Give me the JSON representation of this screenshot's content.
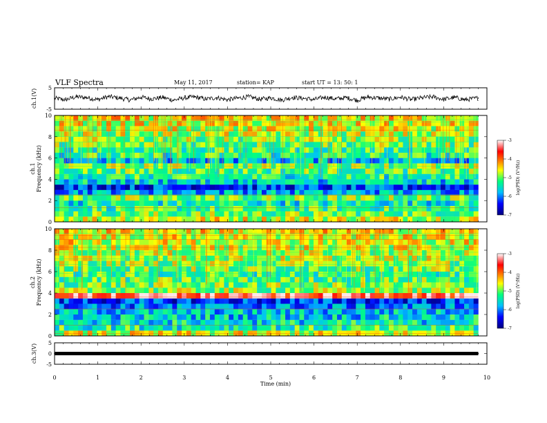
{
  "header": {
    "title": "VLF Spectra",
    "date": "May 11, 2017",
    "station": "station= KAP",
    "start": "start  UT  =   13: 50: 1"
  },
  "chart_data": [
    {
      "type": "line",
      "panel": "ch1-waveform",
      "ylabel": "ch.1(V)",
      "ylim": [
        -5,
        5
      ],
      "yticks": [
        "5",
        "-5"
      ],
      "xlim": [
        0,
        10
      ],
      "x": [
        0,
        0.25,
        0.5,
        0.75,
        1,
        1.25,
        1.5,
        1.75,
        2,
        2.25,
        2.5,
        2.75,
        3,
        3.25,
        3.5,
        3.75,
        4,
        4.25,
        4.5,
        4.75,
        5,
        5.25,
        5.5,
        5.75,
        6,
        6.25,
        6.5,
        6.75,
        7,
        7.25,
        7.5,
        7.75,
        8,
        8.25,
        8.5,
        8.75,
        9,
        9.25,
        9.5,
        9.8
      ],
      "y": [
        0.1,
        -0.6,
        0.8,
        0.4,
        -0.5,
        0.9,
        0.2,
        -0.7,
        0.6,
        -0.2,
        0.5,
        -0.8,
        0.3,
        0.7,
        -0.3,
        0.4,
        -0.6,
        0.2,
        0.8,
        -0.4,
        0.3,
        -0.7,
        0.5,
        0.1,
        -0.5,
        0.6,
        -0.2,
        0.4,
        -0.8,
        0.7,
        0.2,
        -0.3,
        0.6,
        -0.5,
        0.3,
        0.8,
        -0.4,
        0.5,
        -0.6,
        0.2
      ]
    },
    {
      "type": "heatmap",
      "panel": "ch1-spectrogram",
      "ylabel": "ch.1\nFrequency (kHz)",
      "ylim": [
        0,
        10
      ],
      "yticks": [
        "0",
        "2",
        "4",
        "6",
        "8",
        "10"
      ],
      "xlim": [
        0,
        10
      ],
      "data_end_min": 9.8,
      "rows_freq_khz_start": [
        0,
        0.5,
        1,
        1.5,
        2,
        2.5,
        3,
        3.5,
        4,
        4.5,
        5,
        5.5,
        6,
        6.5,
        7,
        7.5,
        8,
        8.5,
        9,
        9.5
      ],
      "log_psd_by_row": [
        -4.6,
        -5.0,
        -5.2,
        -5.4,
        -5.0,
        -5.8,
        -6.3,
        -5.6,
        -5.3,
        -5.1,
        -4.9,
        -5.7,
        -5.3,
        -5.2,
        -5.0,
        -4.9,
        -4.8,
        -4.7,
        -4.6,
        -4.5
      ],
      "colorbar": {
        "label": "log(PSD) (V²/Hz)",
        "min": -7,
        "max": -3,
        "ticks": [
          "-3",
          "-4",
          "-5",
          "-6",
          "-7"
        ]
      }
    },
    {
      "type": "heatmap",
      "panel": "ch2-spectrogram",
      "ylabel": "ch.2\nFrequency (kHz)",
      "ylim": [
        0,
        10
      ],
      "yticks": [
        "0",
        "2",
        "4",
        "6",
        "8",
        "10"
      ],
      "xlim": [
        0,
        10
      ],
      "data_end_min": 9.8,
      "rows_freq_khz_start": [
        0,
        0.5,
        1,
        1.5,
        2,
        2.5,
        3,
        3.5,
        4,
        4.5,
        5,
        5.5,
        6,
        6.5,
        7,
        7.5,
        8,
        8.5,
        9,
        9.5
      ],
      "log_psd_by_row": [
        -4.7,
        -5.3,
        -5.5,
        -5.6,
        -5.7,
        -6.0,
        -6.3,
        -3.4,
        -4.9,
        -5.0,
        -5.1,
        -5.2,
        -5.0,
        -4.9,
        -4.8,
        -4.8,
        -4.7,
        -4.6,
        -4.6,
        -4.5
      ],
      "colorbar": {
        "label": "log(PSD) (V²/Hz)",
        "min": -7,
        "max": -3,
        "ticks": [
          "-3",
          "-4",
          "-5",
          "-6",
          "-7"
        ]
      }
    },
    {
      "type": "line",
      "panel": "ch3-waveform",
      "ylabel": "ch.3(V)",
      "ylim": [
        -5,
        5
      ],
      "yticks": [
        "5",
        "0",
        "-5"
      ],
      "xlim": [
        0,
        10
      ],
      "x": [
        0,
        9.8
      ],
      "y": [
        0,
        0
      ]
    }
  ],
  "xaxis": {
    "label": "Time  (min)",
    "ticks": [
      "0",
      "1",
      "2",
      "3",
      "4",
      "5",
      "6",
      "7",
      "8",
      "9",
      "10"
    ]
  },
  "colors": {
    "trace": "#000000",
    "colormap": [
      "#00007f",
      "#0000ff",
      "#00bfff",
      "#00ff80",
      "#ffff00",
      "#ff8000",
      "#ff0000",
      "#ffffff"
    ]
  }
}
